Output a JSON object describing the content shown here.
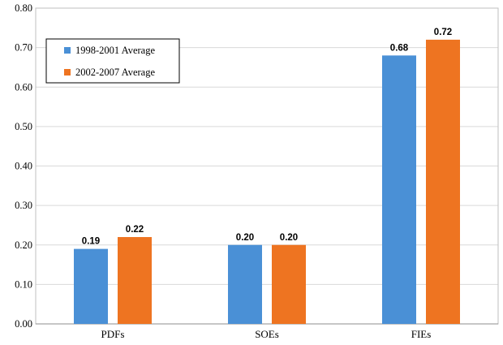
{
  "chart_data": {
    "type": "bar",
    "title": "",
    "xlabel": "",
    "ylabel": "",
    "categories": [
      "PDFs",
      "SOEs",
      "FIEs"
    ],
    "series": [
      {
        "name": "1998-2001 Average",
        "values": [
          0.19,
          0.2,
          0.68
        ],
        "labels": [
          "0.19",
          "0.20",
          "0.68"
        ],
        "color": "#4a90d6"
      },
      {
        "name": "2002-2007 Average",
        "values": [
          0.22,
          0.2,
          0.72
        ],
        "labels": [
          "0.22",
          "0.20",
          "0.72"
        ],
        "color": "#ee7421"
      }
    ],
    "ylim": [
      0,
      0.8
    ],
    "yticks": [
      "0.00",
      "0.10",
      "0.20",
      "0.30",
      "0.40",
      "0.50",
      "0.60",
      "0.70",
      "0.80"
    ],
    "grid": true,
    "legend_position": "top-left"
  }
}
